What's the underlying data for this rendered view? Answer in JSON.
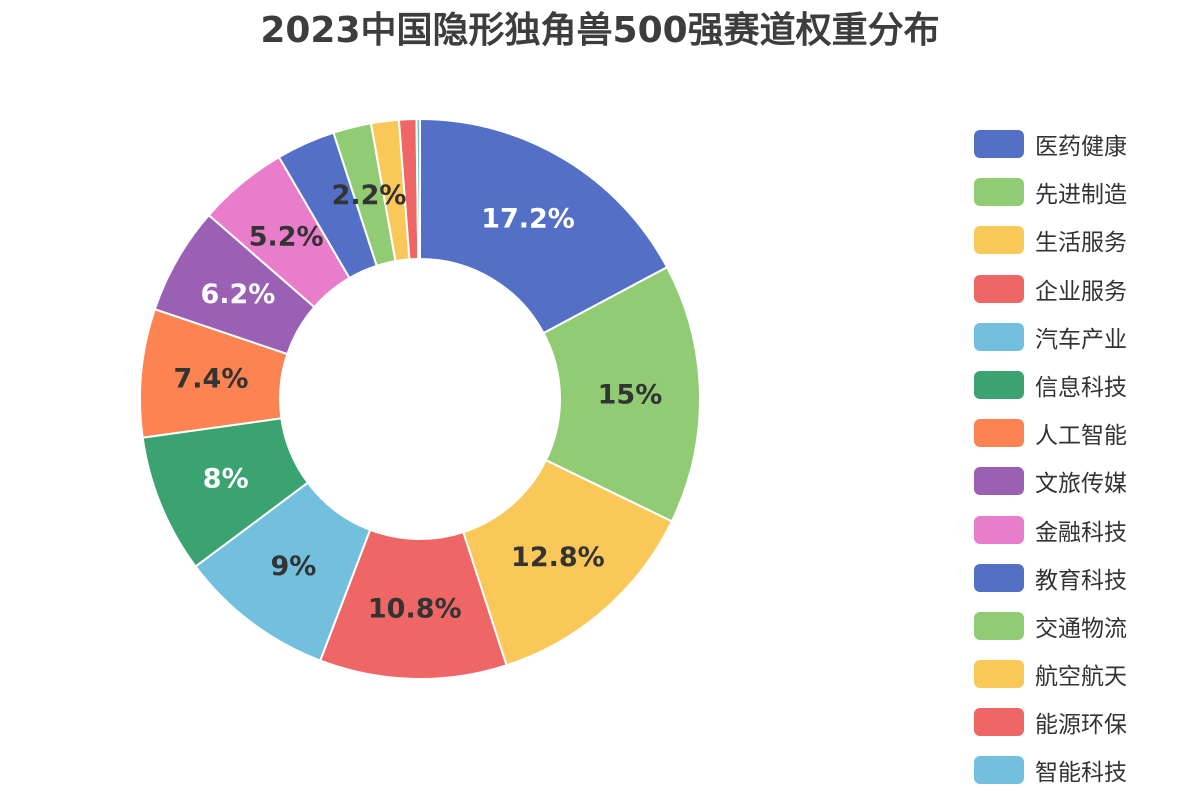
{
  "chart_data": {
    "type": "pie",
    "title": "2023中国隐形独角兽500强赛道权重分布",
    "legend_position": "right",
    "series": [
      {
        "slices": [
          {
            "name": "医药健康",
            "value": 17.2,
            "label": "17.2%",
            "color": "#5470c6",
            "label_color": "#ffffff"
          },
          {
            "name": "先进制造",
            "value": 15.0,
            "label": "15%",
            "color": "#91cc75",
            "label_color": "#333333"
          },
          {
            "name": "生活服务",
            "value": 12.8,
            "label": "12.8%",
            "color": "#fac858",
            "label_color": "#333333"
          },
          {
            "name": "企业服务",
            "value": 10.8,
            "label": "10.8%",
            "color": "#ee6666",
            "label_color": "#333333"
          },
          {
            "name": "汽车产业",
            "value": 9.0,
            "label": "9%",
            "color": "#73c0de",
            "label_color": "#333333"
          },
          {
            "name": "信息科技",
            "value": 8.0,
            "label": "8%",
            "color": "#3ba272",
            "label_color": "#ffffff"
          },
          {
            "name": "人工智能",
            "value": 7.4,
            "label": "7.4%",
            "color": "#fc8452",
            "label_color": "#333333"
          },
          {
            "name": "文旅传媒",
            "value": 6.2,
            "label": "6.2%",
            "color": "#9a60b4",
            "label_color": "#ffffff"
          },
          {
            "name": "金融科技",
            "value": 5.2,
            "label": "5.2%",
            "color": "#ea7ccc",
            "label_color": "#333333"
          },
          {
            "name": "教育科技",
            "value": 3.4,
            "label": "",
            "color": "#5470c6",
            "label_color": "#333333"
          },
          {
            "name": "交通物流",
            "value": 2.2,
            "label": "2.2%",
            "color": "#91cc75",
            "label_color": "#333333"
          },
          {
            "name": "航空航天",
            "value": 1.6,
            "label": "",
            "color": "#fac858",
            "label_color": "#333333"
          },
          {
            "name": "能源环保",
            "value": 1.0,
            "label": "",
            "color": "#ee6666",
            "label_color": "#333333"
          },
          {
            "name": "智能科技",
            "value": 0.2,
            "label": "",
            "color": "#73c0de",
            "label_color": "#333333"
          }
        ]
      }
    ]
  }
}
